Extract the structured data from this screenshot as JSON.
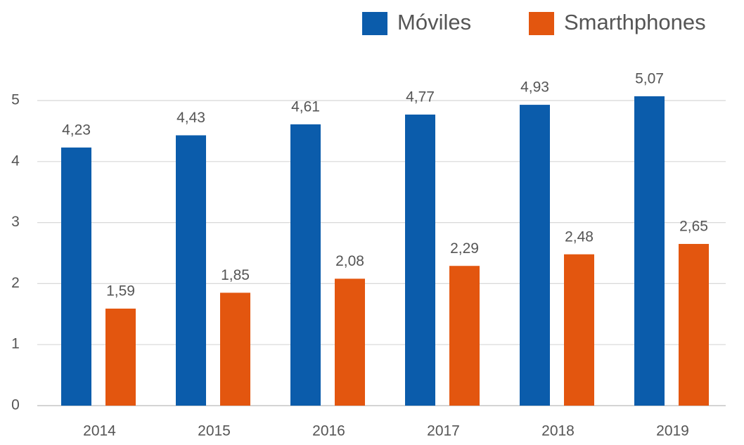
{
  "chart_data": {
    "type": "bar",
    "categories": [
      "2014",
      "2015",
      "2016",
      "2017",
      "2018",
      "2019"
    ],
    "series": [
      {
        "name": "Móviles",
        "color": "#0b5cab",
        "values": [
          4.23,
          4.43,
          4.61,
          4.77,
          4.93,
          5.07
        ],
        "value_labels": [
          "4,23",
          "4,43",
          "4,61",
          "4,77",
          "4,93",
          "5,07"
        ]
      },
      {
        "name": "Smarthphones",
        "color": "#e3560f",
        "values": [
          1.59,
          1.85,
          2.08,
          2.29,
          2.48,
          2.65
        ],
        "value_labels": [
          "1,59",
          "1,85",
          "2,08",
          "2,29",
          "2,48",
          "2,65"
        ]
      }
    ],
    "ylim": [
      0,
      5.5
    ],
    "yticks": [
      0,
      1,
      2,
      3,
      4,
      5
    ],
    "grid": true,
    "legend": "top-right"
  }
}
